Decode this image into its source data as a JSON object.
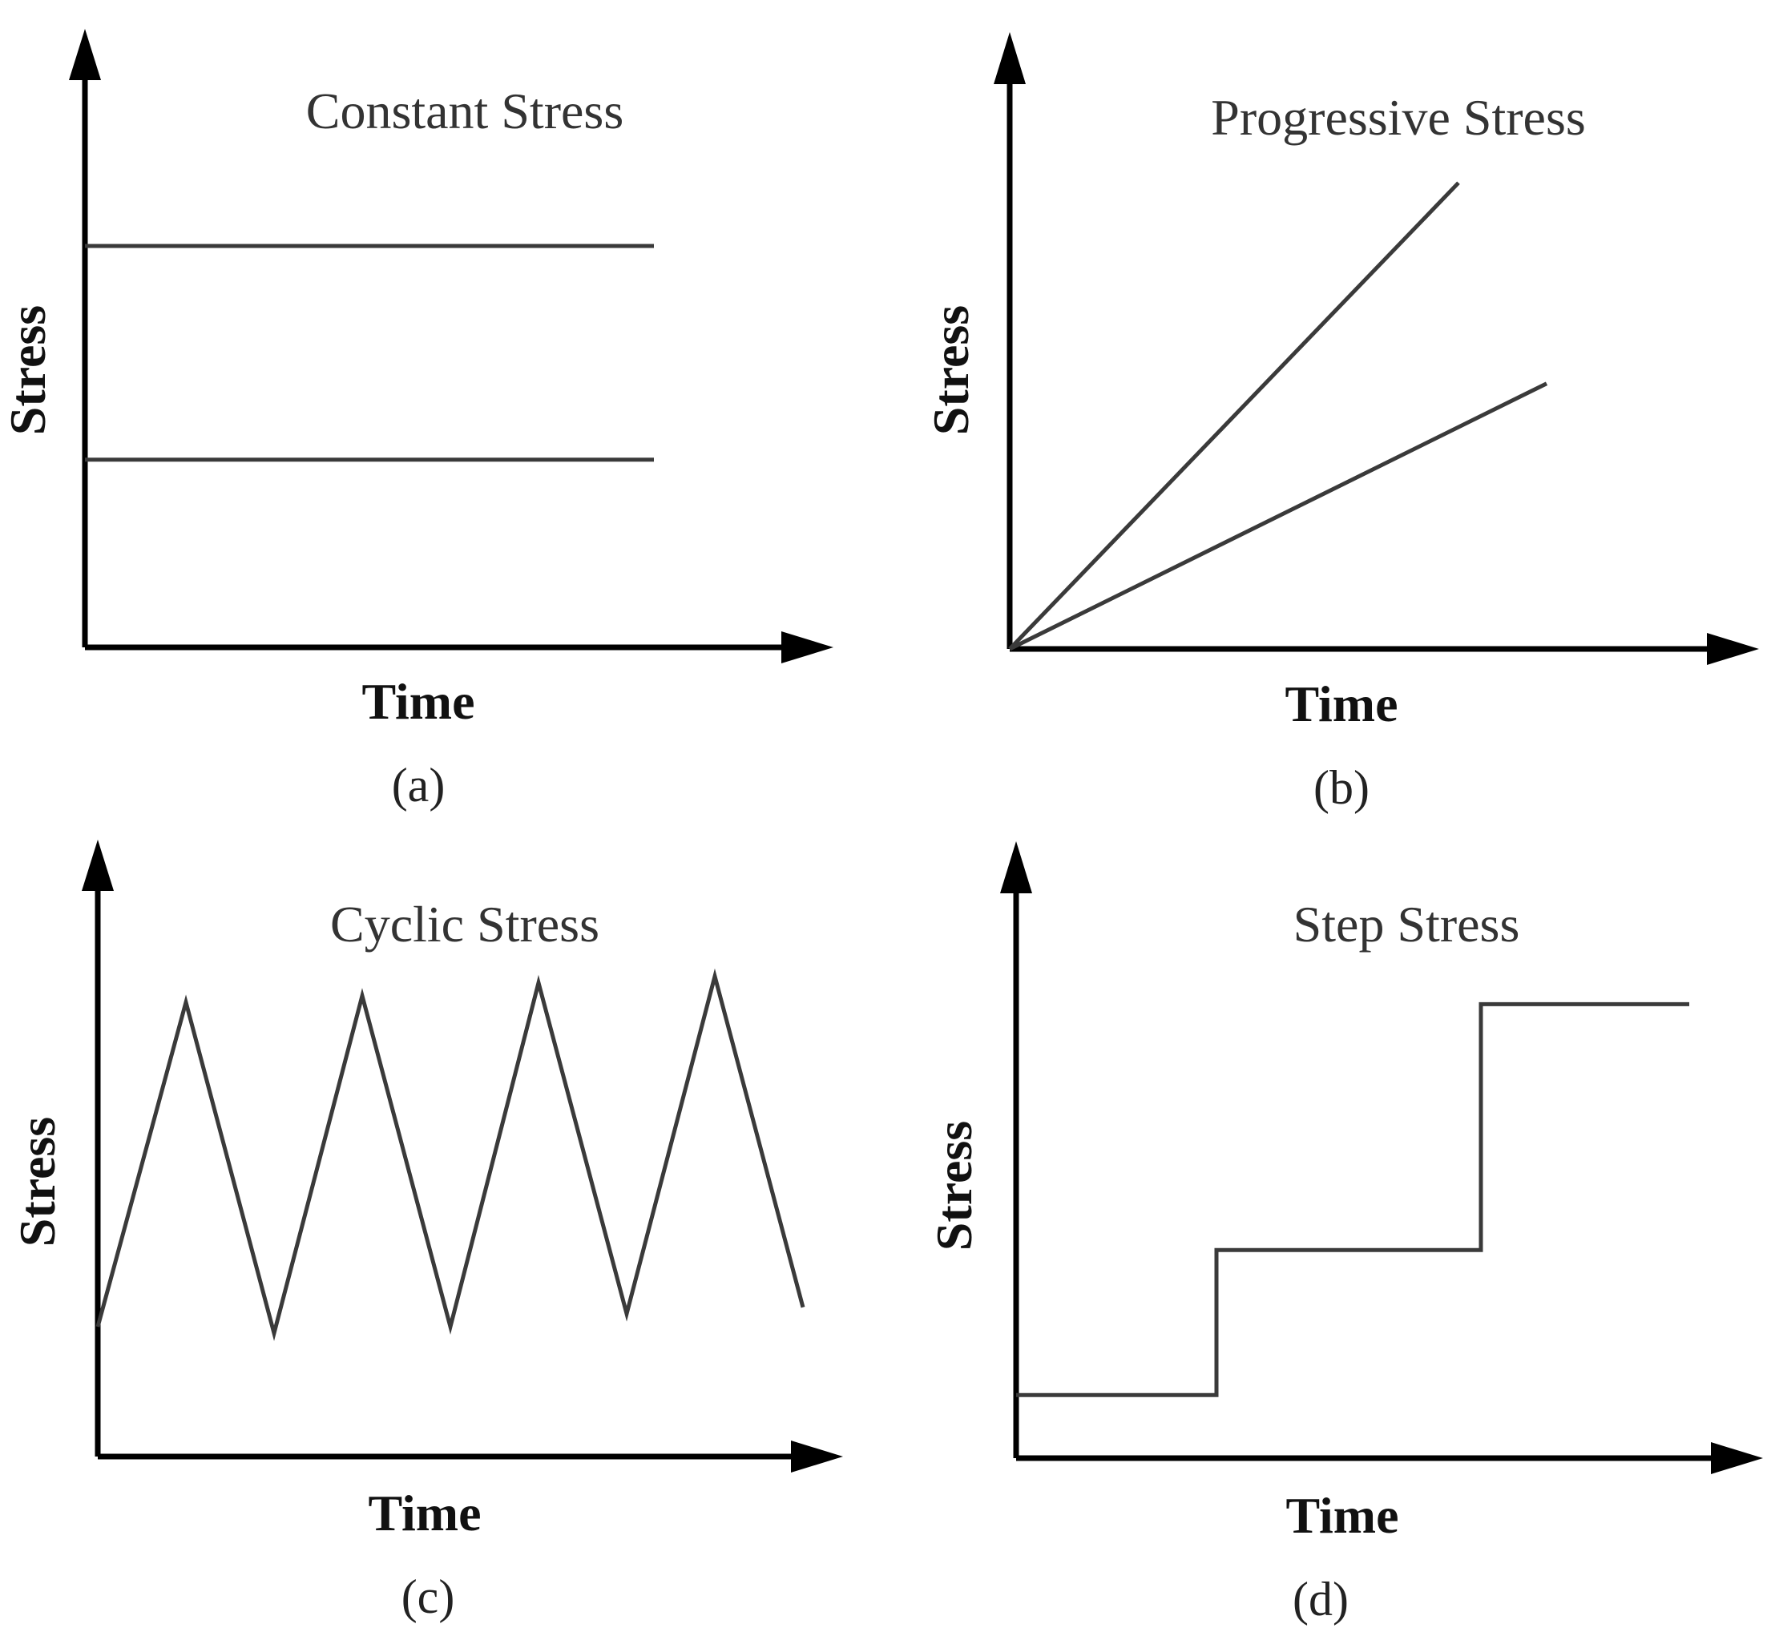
{
  "colors": {
    "axis": "#000000",
    "series": "#3a3a3a",
    "text": "#222222",
    "background": "#ffffff"
  },
  "chart_data": [
    {
      "id": "a",
      "type": "line",
      "title": "Constant Stress",
      "xlabel": "Time",
      "ylabel": "Stress",
      "caption": "(a)",
      "xlim": [
        0,
        10
      ],
      "ylim": [
        0,
        10
      ],
      "series": [
        {
          "points": [
            [
              0,
              6.2
            ],
            [
              7.1,
              6.2
            ]
          ]
        },
        {
          "points": [
            [
              0,
              2.9
            ],
            [
              7.1,
              2.9
            ]
          ]
        }
      ]
    },
    {
      "id": "b",
      "type": "line",
      "title": "Progressive Stress",
      "xlabel": "Time",
      "ylabel": "Stress",
      "caption": "(b)",
      "xlim": [
        0,
        10
      ],
      "ylim": [
        0,
        10
      ],
      "series": [
        {
          "points": [
            [
              0,
              0
            ],
            [
              5.6,
              7.2
            ]
          ]
        },
        {
          "points": [
            [
              0,
              0
            ],
            [
              6.7,
              4.1
            ]
          ]
        }
      ]
    },
    {
      "id": "c",
      "type": "line",
      "title": "Cyclic Stress",
      "xlabel": "Time",
      "ylabel": "Stress",
      "caption": "(c)",
      "xlim": [
        0,
        10
      ],
      "ylim": [
        0,
        10
      ],
      "series": [
        {
          "points": [
            [
              0,
              2.0
            ],
            [
              1.1,
              7.0
            ],
            [
              2.2,
              1.9
            ],
            [
              3.3,
              7.1
            ],
            [
              4.4,
              2.0
            ],
            [
              5.5,
              7.3
            ],
            [
              6.6,
              2.2
            ],
            [
              7.7,
              7.4
            ],
            [
              8.8,
              2.3
            ]
          ]
        }
      ]
    },
    {
      "id": "d",
      "type": "line",
      "title": "Step Stress",
      "xlabel": "Time",
      "ylabel": "Stress",
      "caption": "(d)",
      "xlim": [
        0,
        10
      ],
      "ylim": [
        0,
        10
      ],
      "series": [
        {
          "points": [
            [
              0,
              1.0
            ],
            [
              2.5,
              1.0
            ],
            [
              2.5,
              3.3
            ],
            [
              5.8,
              3.3
            ],
            [
              5.8,
              7.2
            ],
            [
              8.4,
              7.2
            ]
          ]
        }
      ]
    }
  ]
}
